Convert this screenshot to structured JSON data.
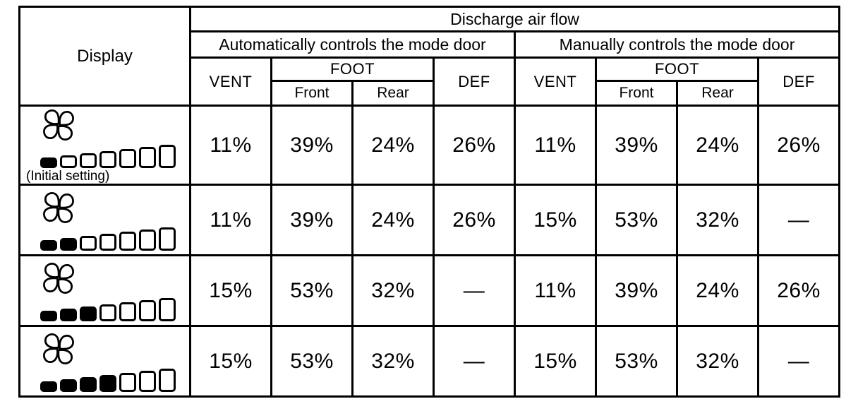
{
  "header": {
    "display": "Display",
    "discharge_air_flow": "Discharge air flow",
    "auto_group": "Automatically controls the mode door",
    "manual_group": "Manually controls the mode door",
    "vent": "VENT",
    "foot": "FOOT",
    "front": "Front",
    "rear": "Rear",
    "def": "DEF"
  },
  "rows": [
    {
      "bars_filled": 1,
      "bars_total": 7,
      "note": "(Initial setting)",
      "cells": [
        "11%",
        "39%",
        "24%",
        "26%",
        "11%",
        "39%",
        "24%",
        "26%"
      ]
    },
    {
      "bars_filled": 2,
      "bars_total": 7,
      "note": "",
      "cells": [
        "11%",
        "39%",
        "24%",
        "26%",
        "15%",
        "53%",
        "32%",
        "—"
      ]
    },
    {
      "bars_filled": 3,
      "bars_total": 7,
      "note": "",
      "cells": [
        "15%",
        "53%",
        "32%",
        "—",
        "11%",
        "39%",
        "24%",
        "26%"
      ]
    },
    {
      "bars_filled": 4,
      "bars_total": 7,
      "note": "",
      "cells": [
        "15%",
        "53%",
        "32%",
        "—",
        "15%",
        "53%",
        "32%",
        "—"
      ]
    }
  ],
  "colors": {
    "background": "#ffffff",
    "border": "#000000",
    "text": "#000000",
    "bar_fill": "#000000"
  }
}
